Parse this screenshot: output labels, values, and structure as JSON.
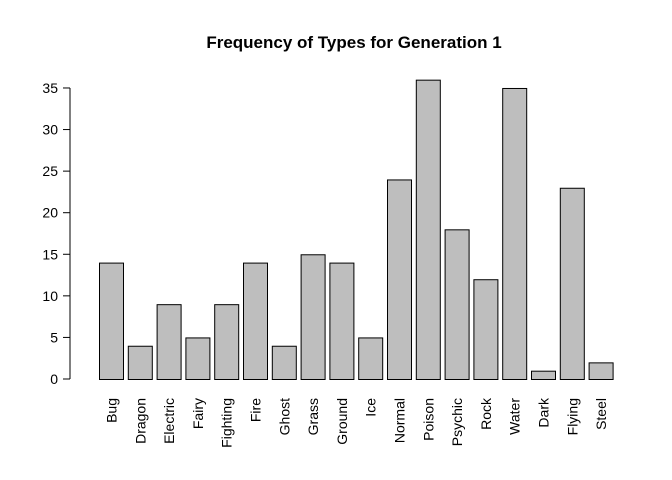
{
  "chart_data": {
    "type": "bar",
    "title": "Frequency of Types for Generation 1",
    "xlabel": "",
    "ylabel": "",
    "categories": [
      "Bug",
      "Dragon",
      "Electric",
      "Fairy",
      "Fighting",
      "Fire",
      "Ghost",
      "Grass",
      "Ground",
      "Ice",
      "Normal",
      "Poison",
      "Psychic",
      "Rock",
      "Water",
      "Dark",
      "Flying",
      "Steel"
    ],
    "values": [
      14,
      4,
      9,
      5,
      9,
      14,
      4,
      15,
      14,
      5,
      24,
      36,
      18,
      12,
      35,
      1,
      23,
      2
    ],
    "ylim": [
      0,
      35
    ],
    "yticks": [
      0,
      5,
      10,
      15,
      20,
      25,
      30,
      35
    ],
    "bar_color": "#bebebe",
    "bar_edge_color": "#000000",
    "grid": false,
    "legend": "none"
  }
}
